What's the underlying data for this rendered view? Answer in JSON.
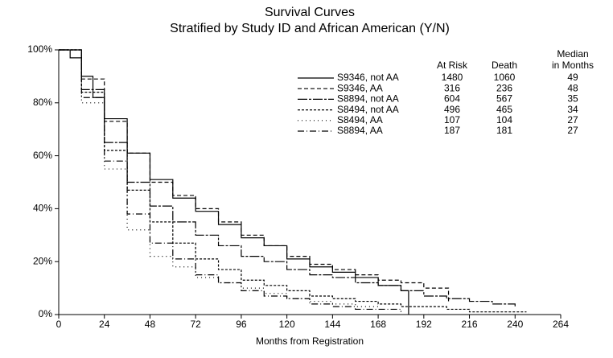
{
  "chart_data": {
    "type": "line",
    "step": true,
    "title": "Survival Curves",
    "subtitle": "Stratified by Study ID and African American (Y/N)",
    "x_label": "Months from Registration",
    "xlim": [
      0,
      264
    ],
    "xticks": [
      0,
      24,
      48,
      72,
      96,
      120,
      144,
      168,
      192,
      216,
      240,
      264
    ],
    "ylim": [
      0,
      100
    ],
    "yticks": [
      {
        "value": 0,
        "label": "0%"
      },
      {
        "value": 20,
        "label": "20%"
      },
      {
        "value": 40,
        "label": "40%"
      },
      {
        "value": 60,
        "label": "60%"
      },
      {
        "value": 80,
        "label": "80%"
      },
      {
        "value": 100,
        "label": "100%"
      }
    ],
    "legend_headers": {
      "at_risk": "At Risk",
      "death": "Death",
      "median": [
        "Median",
        "in Months"
      ]
    },
    "series": [
      {
        "name": "S9346, not AA",
        "color": "#000000",
        "dash": "none",
        "at_risk": 1480,
        "death": 1060,
        "median": 49,
        "x": [
          0,
          6,
          12,
          18,
          24,
          36,
          48,
          60,
          72,
          84,
          96,
          108,
          120,
          132,
          144,
          156,
          168,
          180,
          184
        ],
        "values": [
          100,
          97,
          90,
          82,
          74,
          61,
          51,
          44,
          39,
          34,
          29,
          26,
          21,
          18,
          16,
          14,
          11,
          9,
          0
        ]
      },
      {
        "name": "S9346, AA",
        "color": "#000000",
        "dash": "5 3",
        "at_risk": 316,
        "death": 236,
        "median": 48,
        "x": [
          0,
          12,
          24,
          36,
          48,
          60,
          72,
          84,
          96,
          108,
          120,
          132,
          144,
          156,
          168,
          180,
          192,
          205
        ],
        "values": [
          100,
          89,
          73,
          61,
          50,
          45,
          40,
          35,
          30,
          26,
          22,
          19,
          17,
          15,
          13,
          12,
          10,
          5
        ]
      },
      {
        "name": "S8894, not AA",
        "color": "#000000",
        "dash": "12 2 3 2",
        "at_risk": 604,
        "death": 567,
        "median": 35,
        "x": [
          0,
          12,
          24,
          36,
          48,
          60,
          72,
          84,
          96,
          108,
          120,
          132,
          144,
          156,
          168,
          180,
          192,
          204,
          216,
          228,
          240
        ],
        "values": [
          100,
          85,
          65,
          50,
          41,
          35,
          30,
          26,
          22,
          20,
          17,
          15,
          14,
          12,
          11,
          9,
          7,
          6,
          5,
          4,
          3
        ]
      },
      {
        "name": "S8494, not AA",
        "color": "#000000",
        "dash": "3 2",
        "at_risk": 496,
        "death": 465,
        "median": 34,
        "x": [
          0,
          12,
          24,
          36,
          48,
          60,
          72,
          84,
          96,
          108,
          120,
          132,
          144,
          156,
          168,
          180,
          192,
          204,
          216,
          228,
          240,
          246
        ],
        "values": [
          100,
          84,
          62,
          47,
          35,
          27,
          21,
          17,
          13,
          11,
          9,
          7,
          6,
          5,
          4,
          3,
          3,
          2,
          1,
          1,
          1,
          1
        ]
      },
      {
        "name": "S8494, AA",
        "color": "#000000",
        "dash": "1 4",
        "at_risk": 107,
        "death": 104,
        "median": 27,
        "x": [
          0,
          12,
          24,
          36,
          48,
          60,
          72,
          84,
          96,
          108,
          120,
          132,
          144,
          156,
          168
        ],
        "values": [
          100,
          80,
          55,
          32,
          22,
          18,
          14,
          12,
          10,
          8,
          6,
          5,
          4,
          3,
          2
        ]
      },
      {
        "name": "S8894, AA",
        "color": "#000000",
        "dash": "8 3 1 3",
        "at_risk": 187,
        "death": 181,
        "median": 27,
        "x": [
          0,
          12,
          24,
          36,
          48,
          60,
          72,
          84,
          96,
          108,
          120,
          132,
          144,
          156,
          168,
          180
        ],
        "values": [
          100,
          82,
          58,
          38,
          27,
          21,
          15,
          12,
          9,
          7,
          6,
          4,
          3,
          2,
          2,
          1
        ]
      }
    ]
  }
}
